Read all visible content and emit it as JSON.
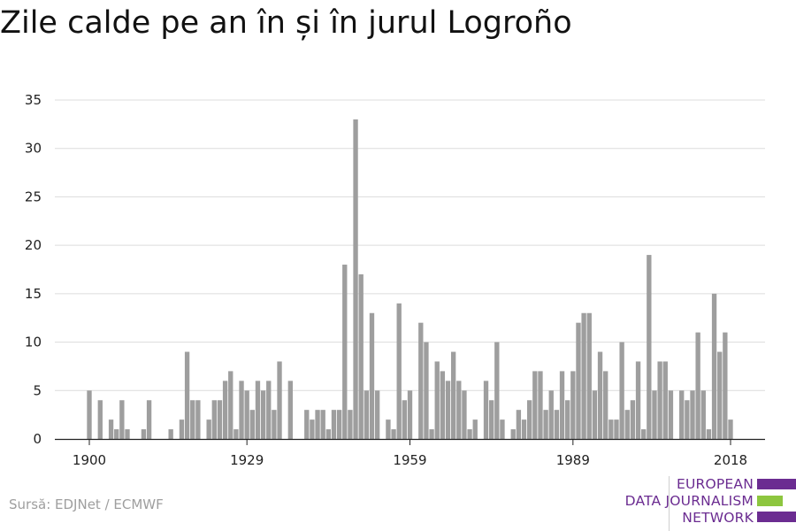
{
  "title": "Zile calde pe an în și în jurul Logroño",
  "source": "Sursă: EDJNet / ECMWF",
  "logo": {
    "lines": [
      "EUROPEAN",
      "DATA JOURNALISM",
      "NETWORK"
    ],
    "colors": [
      "#6b2c91",
      "#8dc63f",
      "#6b2c91"
    ]
  },
  "chart_data": {
    "type": "bar",
    "title": "Zile calde pe an în și în jurul Logroño",
    "xlabel": "",
    "ylabel": "",
    "x": [
      1900,
      1901,
      1902,
      1903,
      1904,
      1905,
      1906,
      1907,
      1908,
      1909,
      1910,
      1911,
      1912,
      1913,
      1914,
      1915,
      1916,
      1917,
      1918,
      1919,
      1920,
      1921,
      1922,
      1923,
      1924,
      1925,
      1926,
      1927,
      1928,
      1929,
      1930,
      1931,
      1932,
      1933,
      1934,
      1935,
      1936,
      1937,
      1938,
      1939,
      1940,
      1941,
      1942,
      1943,
      1944,
      1945,
      1946,
      1947,
      1948,
      1949,
      1950,
      1951,
      1952,
      1953,
      1954,
      1955,
      1956,
      1957,
      1958,
      1959,
      1960,
      1961,
      1962,
      1963,
      1964,
      1965,
      1966,
      1967,
      1968,
      1969,
      1970,
      1971,
      1972,
      1973,
      1974,
      1975,
      1976,
      1977,
      1978,
      1979,
      1980,
      1981,
      1982,
      1983,
      1984,
      1985,
      1986,
      1987,
      1988,
      1989,
      1990,
      1991,
      1992,
      1993,
      1994,
      1995,
      1996,
      1997,
      1998,
      1999,
      2000,
      2001,
      2002,
      2003,
      2004,
      2005,
      2006,
      2007,
      2008,
      2009,
      2010,
      2011,
      2012,
      2013,
      2014,
      2015,
      2016,
      2017,
      2018
    ],
    "values": [
      5,
      0,
      4,
      0,
      2,
      1,
      4,
      1,
      0,
      0,
      1,
      4,
      0,
      0,
      0,
      1,
      0,
      2,
      9,
      4,
      4,
      0,
      2,
      4,
      4,
      6,
      7,
      1,
      6,
      5,
      3,
      6,
      5,
      6,
      3,
      8,
      0,
      6,
      0,
      0,
      3,
      2,
      3,
      3,
      1,
      3,
      3,
      18,
      3,
      33,
      17,
      5,
      13,
      5,
      0,
      2,
      1,
      14,
      4,
      5,
      0,
      12,
      10,
      1,
      8,
      7,
      6,
      9,
      6,
      5,
      1,
      2,
      0,
      6,
      4,
      10,
      2,
      0,
      1,
      3,
      2,
      4,
      7,
      7,
      3,
      5,
      3,
      7,
      4,
      7,
      12,
      13,
      13,
      5,
      9,
      7,
      2,
      2,
      10,
      3,
      4,
      8,
      1,
      19,
      5,
      8,
      8,
      5,
      0,
      5,
      4,
      5,
      11,
      5,
      1,
      15,
      9,
      11,
      2
    ],
    "xticks": [
      1900,
      1929,
      1959,
      1989,
      2018
    ],
    "yticks": [
      0,
      5,
      10,
      15,
      20,
      25,
      30,
      35
    ],
    "ylim": [
      0,
      35
    ],
    "grid": true,
    "bar_color": "#9e9e9e"
  }
}
